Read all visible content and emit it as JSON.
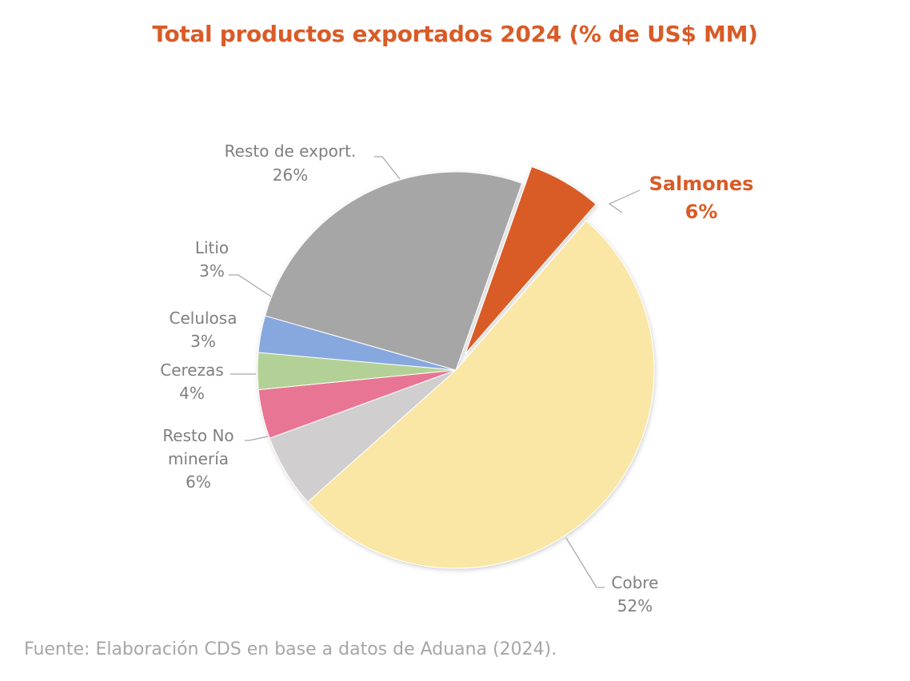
{
  "chart_data": {
    "type": "pie",
    "title": "Total productos exportados 2024 (% de US$ MM)",
    "slices": [
      {
        "label": "Salmones",
        "value": 6,
        "value_label": "6%",
        "color": "#d95b27",
        "highlight": true
      },
      {
        "label": "Cobre",
        "value": 52,
        "value_label": "52%",
        "color": "#fae6a5",
        "highlight": false
      },
      {
        "label": "Resto No minería",
        "value": 6,
        "value_label": "6%",
        "color": "#d0cece",
        "highlight": false
      },
      {
        "label": "Cerezas",
        "value": 4,
        "value_label": "4%",
        "color": "#e87593",
        "highlight": false
      },
      {
        "label": "Celulosa",
        "value": 3,
        "value_label": "3%",
        "color": "#b3d196",
        "highlight": false
      },
      {
        "label": "Litio",
        "value": 3,
        "value_label": "3%",
        "color": "#87a8de",
        "highlight": false
      },
      {
        "label": "Resto de export.",
        "value": 26,
        "value_label": "26%",
        "color": "#a6a6a6",
        "highlight": false
      }
    ],
    "legend": "none",
    "labels": "outside-with-leader-lines"
  },
  "colors": {
    "title": "#d95b27",
    "label_text": "#7f7f7f",
    "highlight_text": "#d95b27",
    "leader_line": "#a6a6a6",
    "source_text": "#a6a6a6"
  },
  "source_note": "Fuente: Elaboración CDS en base a datos de Aduana (2024)."
}
